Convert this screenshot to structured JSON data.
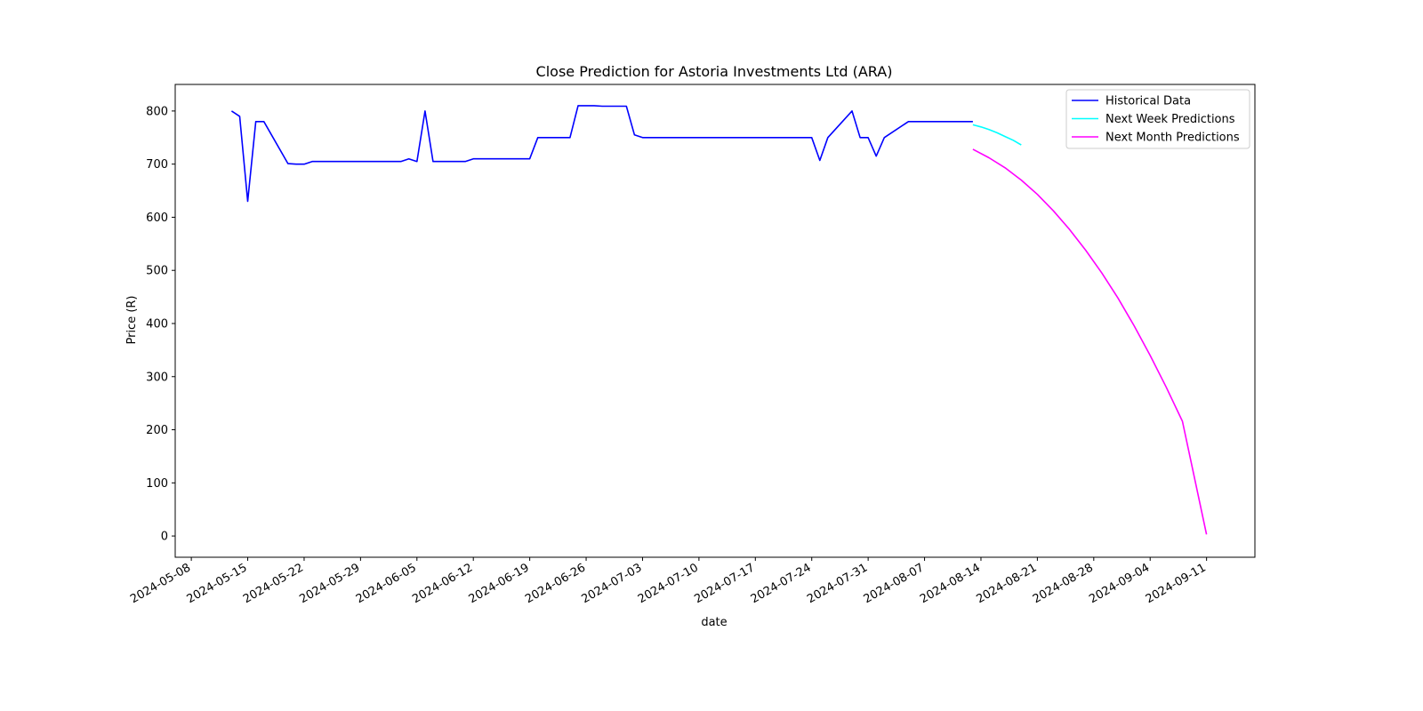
{
  "chart_data": {
    "type": "line",
    "title": "Close Prediction for Astoria Investments Ltd (ARA)",
    "xlabel": "date",
    "ylabel": "Price (R)",
    "x_type": "date",
    "xlim": [
      "2024-05-06",
      "2024-09-17"
    ],
    "ylim": [
      -40,
      850
    ],
    "yticks": [
      0,
      100,
      200,
      300,
      400,
      500,
      600,
      700,
      800
    ],
    "xticks": [
      "2024-05-08",
      "2024-05-15",
      "2024-05-22",
      "2024-05-29",
      "2024-06-05",
      "2024-06-12",
      "2024-06-19",
      "2024-06-26",
      "2024-07-03",
      "2024-07-10",
      "2024-07-17",
      "2024-07-24",
      "2024-07-31",
      "2024-08-07",
      "2024-08-14",
      "2024-08-21",
      "2024-08-28",
      "2024-09-04",
      "2024-09-11"
    ],
    "grid": false,
    "legend_position": "top-right",
    "series": [
      {
        "name": "Historical Data",
        "color": "#0000ff",
        "x": [
          "2024-05-13",
          "2024-05-14",
          "2024-05-15",
          "2024-05-16",
          "2024-05-17",
          "2024-05-20",
          "2024-05-21",
          "2024-05-22",
          "2024-05-23",
          "2024-05-24",
          "2024-05-27",
          "2024-05-28",
          "2024-05-29",
          "2024-05-30",
          "2024-05-31",
          "2024-06-03",
          "2024-06-04",
          "2024-06-05",
          "2024-06-06",
          "2024-06-07",
          "2024-06-10",
          "2024-06-11",
          "2024-06-12",
          "2024-06-13",
          "2024-06-14",
          "2024-06-17",
          "2024-06-18",
          "2024-06-19",
          "2024-06-20",
          "2024-06-21",
          "2024-06-24",
          "2024-06-25",
          "2024-06-26",
          "2024-06-27",
          "2024-06-28",
          "2024-07-01",
          "2024-07-02",
          "2024-07-03",
          "2024-07-04",
          "2024-07-05",
          "2024-07-08",
          "2024-07-09",
          "2024-07-10",
          "2024-07-11",
          "2024-07-12",
          "2024-07-15",
          "2024-07-16",
          "2024-07-17",
          "2024-07-18",
          "2024-07-19",
          "2024-07-22",
          "2024-07-23",
          "2024-07-24",
          "2024-07-25",
          "2024-07-26",
          "2024-07-29",
          "2024-07-30",
          "2024-07-31",
          "2024-08-01",
          "2024-08-02",
          "2024-08-05",
          "2024-08-06",
          "2024-08-07",
          "2024-08-08",
          "2024-08-09",
          "2024-08-12",
          "2024-08-13"
        ],
        "values": [
          800,
          790,
          630,
          780,
          780,
          701,
          700,
          700,
          705,
          705,
          705,
          705,
          705,
          705,
          705,
          705,
          710,
          705,
          800,
          705,
          705,
          705,
          710,
          710,
          710,
          710,
          710,
          710,
          750,
          750,
          750,
          810,
          810,
          810,
          809,
          809,
          755,
          750,
          750,
          750,
          750,
          750,
          750,
          750,
          750,
          750,
          750,
          750,
          750,
          750,
          750,
          750,
          750,
          707,
          750,
          800,
          750,
          750,
          715,
          750,
          780,
          780,
          780,
          780,
          780,
          780,
          780
        ]
      },
      {
        "name": "Next Week Predictions",
        "color": "#00ffff",
        "x": [
          "2024-08-13",
          "2024-08-14",
          "2024-08-15",
          "2024-08-16",
          "2024-08-17",
          "2024-08-18",
          "2024-08-19"
        ],
        "values": [
          774,
          770,
          765,
          759,
          752,
          745,
          736
        ]
      },
      {
        "name": "Next Month Predictions",
        "color": "#ff00ff",
        "x": [
          "2024-08-13",
          "2024-08-15",
          "2024-08-17",
          "2024-08-19",
          "2024-08-21",
          "2024-08-23",
          "2024-08-25",
          "2024-08-27",
          "2024-08-29",
          "2024-08-31",
          "2024-09-02",
          "2024-09-04",
          "2024-09-06",
          "2024-09-08",
          "2024-09-11"
        ],
        "values": [
          728,
          712,
          693,
          670,
          643,
          612,
          577,
          538,
          495,
          448,
          396,
          340,
          280,
          216,
          3
        ]
      }
    ]
  }
}
